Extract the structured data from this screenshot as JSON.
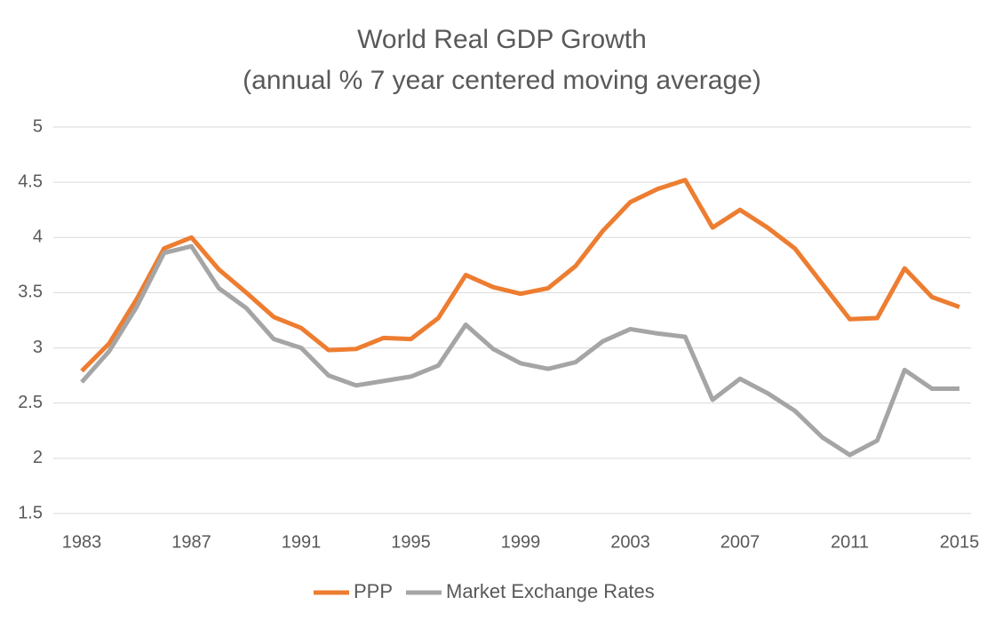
{
  "chart_data": {
    "type": "line",
    "title": "World Real GDP Growth",
    "subtitle": "(annual % 7 year centered moving average)",
    "x": [
      1983,
      1984,
      1985,
      1986,
      1987,
      1988,
      1989,
      1990,
      1991,
      1992,
      1993,
      1994,
      1995,
      1996,
      1997,
      1998,
      1999,
      2000,
      2001,
      2002,
      2003,
      2004,
      2005,
      2006,
      2007,
      2008,
      2009,
      2010,
      2011,
      2012,
      2013,
      2014,
      2015
    ],
    "series": [
      {
        "name": "PPP",
        "color": "#ED7D31",
        "values": [
          2.79,
          3.04,
          3.44,
          3.9,
          4.0,
          3.71,
          3.5,
          3.28,
          3.18,
          2.98,
          2.99,
          3.09,
          3.08,
          3.27,
          3.66,
          3.55,
          3.49,
          3.54,
          3.74,
          4.06,
          4.32,
          4.44,
          4.52,
          4.09,
          4.25,
          4.09,
          3.9,
          3.58,
          3.26,
          3.27,
          3.72,
          3.46,
          3.37
        ]
      },
      {
        "name": "Market Exchange Rates",
        "color": "#A5A5A5",
        "values": [
          2.69,
          2.97,
          3.37,
          3.86,
          3.92,
          3.54,
          3.36,
          3.08,
          3.0,
          2.75,
          2.66,
          2.7,
          2.74,
          2.84,
          3.21,
          2.99,
          2.86,
          2.81,
          2.87,
          3.06,
          3.17,
          3.13,
          3.1,
          2.53,
          2.72,
          2.59,
          2.43,
          2.19,
          2.03,
          2.16,
          2.8,
          2.63,
          2.63
        ]
      }
    ],
    "xlim": [
      1983,
      2015
    ],
    "xticks": [
      1983,
      1987,
      1991,
      1995,
      1999,
      2003,
      2007,
      2011,
      2015
    ],
    "ylim": [
      1.5,
      5
    ],
    "yticks": [
      1.5,
      2,
      2.5,
      3,
      3.5,
      4,
      4.5,
      5
    ],
    "grid": true,
    "legend": "bottom"
  }
}
